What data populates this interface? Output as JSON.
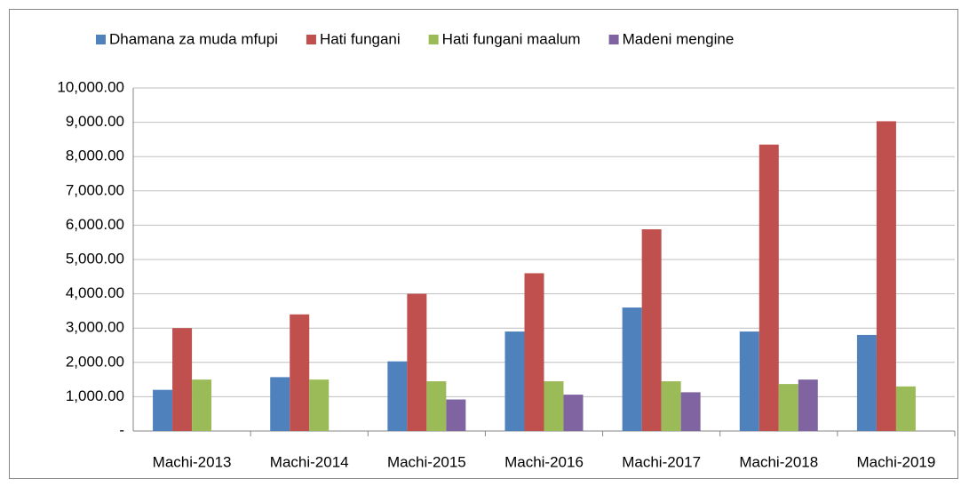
{
  "chart_data": {
    "type": "bar",
    "categories": [
      "Machi-2013",
      "Machi-2014",
      "Machi-2015",
      "Machi-2016",
      "Machi-2017",
      "Machi-2018",
      "Machi-2019"
    ],
    "series": [
      {
        "name": "Dhamana za muda mfupi",
        "color": "#4f81bd",
        "values": [
          1200,
          1570,
          2030,
          2900,
          3600,
          2900,
          2800
        ]
      },
      {
        "name": "Hati fungani",
        "color": "#c0504d",
        "values": [
          3000,
          3400,
          4000,
          4600,
          5880,
          8350,
          9030
        ]
      },
      {
        "name": "Hati fungani maalum",
        "color": "#9bbb59",
        "values": [
          1500,
          1500,
          1450,
          1450,
          1450,
          1370,
          1300
        ]
      },
      {
        "name": "Madeni mengine",
        "color": "#8064a2",
        "values": [
          null,
          null,
          920,
          1060,
          1130,
          1500,
          null
        ]
      }
    ],
    "ylim": [
      0,
      10000
    ],
    "yticks": [
      {
        "value": 0,
        "label": "-"
      },
      {
        "value": 1000,
        "label": "1,000.00"
      },
      {
        "value": 2000,
        "label": "2,000.00"
      },
      {
        "value": 3000,
        "label": "3,000.00"
      },
      {
        "value": 4000,
        "label": "4,000.00"
      },
      {
        "value": 5000,
        "label": "5,000.00"
      },
      {
        "value": 6000,
        "label": "6,000.00"
      },
      {
        "value": 7000,
        "label": "7,000.00"
      },
      {
        "value": 8000,
        "label": "8,000.00"
      },
      {
        "value": 9000,
        "label": "9,000.00"
      },
      {
        "value": 10000,
        "label": "10,000.00"
      }
    ],
    "grid": true,
    "legend": "top"
  }
}
